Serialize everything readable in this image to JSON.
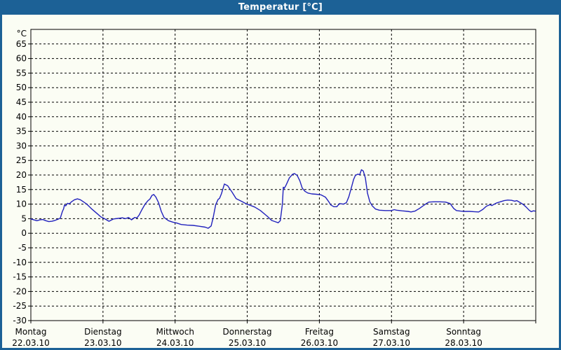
{
  "window": {
    "title": "Temperatur [°C]",
    "titlebar_color": "#1c6196",
    "frame_color": "#1c6196",
    "background_color": "#fbfdf4"
  },
  "chart_data": {
    "type": "line",
    "title": "Temperatur [°C]",
    "grid": "dashed",
    "line_color": "#2121bd",
    "axis_color": "#000000",
    "y_axis": {
      "unit_label": "°C",
      "min": -30,
      "max": 70,
      "tick_step": 5,
      "tick_labels": [
        65,
        60,
        55,
        50,
        45,
        40,
        35,
        30,
        25,
        20,
        15,
        10,
        5,
        0,
        -5,
        -10,
        -15,
        -20,
        -25,
        -30
      ]
    },
    "x_axis": {
      "hours_total": 168,
      "days": [
        {
          "name": "Montag",
          "date": "22.03.10"
        },
        {
          "name": "Dienstag",
          "date": "23.03.10"
        },
        {
          "name": "Mittwoch",
          "date": "24.03.10"
        },
        {
          "name": "Donnerstag",
          "date": "25.03.10"
        },
        {
          "name": "Freitag",
          "date": "26.03.10"
        },
        {
          "name": "Samstag",
          "date": "27.03.10"
        },
        {
          "name": "Sonntag",
          "date": "28.03.10"
        }
      ]
    },
    "series": [
      {
        "name": "Temperatur",
        "unit": "°C",
        "points_hour_temp": [
          [
            0,
            4.9
          ],
          [
            1,
            4.6
          ],
          [
            2,
            4.3
          ],
          [
            3,
            4.6
          ],
          [
            4,
            4.7
          ],
          [
            5,
            4.3
          ],
          [
            6,
            4.0
          ],
          [
            7,
            4.1
          ],
          [
            8,
            4.4
          ],
          [
            9,
            4.8
          ],
          [
            9.8,
            5.2
          ],
          [
            10.5,
            7.5
          ],
          [
            10.9,
            8.4
          ],
          [
            11.2,
            9.7
          ],
          [
            11.6,
            9.4
          ],
          [
            12.2,
            10.3
          ],
          [
            12.8,
            10.1
          ],
          [
            13.5,
            10.8
          ],
          [
            14.5,
            11.5
          ],
          [
            15.5,
            11.8
          ],
          [
            16.5,
            11.5
          ],
          [
            17.5,
            10.8
          ],
          [
            18.6,
            10.0
          ],
          [
            20.3,
            8.3
          ],
          [
            22.1,
            6.7
          ],
          [
            23.3,
            5.6
          ],
          [
            24.5,
            5.0
          ],
          [
            26,
            4.1
          ],
          [
            27.5,
            4.9
          ],
          [
            29,
            5.1
          ],
          [
            30.5,
            5.3
          ],
          [
            31.5,
            5.0
          ],
          [
            32.5,
            5.4
          ],
          [
            33.5,
            4.6
          ],
          [
            34.5,
            5.4
          ],
          [
            35.3,
            5.3
          ],
          [
            36,
            6.2
          ],
          [
            37,
            8.2
          ],
          [
            38,
            10.0
          ],
          [
            39,
            11.2
          ],
          [
            39.6,
            11.7
          ],
          [
            40.3,
            13.0
          ],
          [
            40.9,
            13.3
          ],
          [
            41.6,
            12.4
          ],
          [
            42.5,
            10.5
          ],
          [
            43.4,
            7.5
          ],
          [
            44.3,
            5.4
          ],
          [
            45.8,
            4.3
          ],
          [
            47.3,
            3.8
          ],
          [
            48.5,
            3.5
          ],
          [
            50,
            3.0
          ],
          [
            52,
            2.8
          ],
          [
            54,
            2.7
          ],
          [
            56,
            2.4
          ],
          [
            58,
            2.1
          ],
          [
            59,
            1.7
          ],
          [
            60,
            2.5
          ],
          [
            60.7,
            5.5
          ],
          [
            61.5,
            9.8
          ],
          [
            62.3,
            11.6
          ],
          [
            62.8,
            12.0
          ],
          [
            63.4,
            13.5
          ],
          [
            64.4,
            16.9
          ],
          [
            65.5,
            16.3
          ],
          [
            66.9,
            14.2
          ],
          [
            68.3,
            11.9
          ],
          [
            70,
            11.0
          ],
          [
            71.7,
            10.1
          ],
          [
            73,
            9.6
          ],
          [
            74.5,
            9.0
          ],
          [
            76.4,
            7.8
          ],
          [
            78.7,
            5.8
          ],
          [
            80.1,
            4.4
          ],
          [
            81.5,
            3.9
          ],
          [
            82.3,
            3.6
          ],
          [
            83,
            4.3
          ],
          [
            83.7,
            10.0
          ],
          [
            84,
            15.8
          ],
          [
            84.3,
            15.4
          ],
          [
            84.9,
            16.5
          ],
          [
            86,
            19.0
          ],
          [
            87,
            20.2
          ],
          [
            87.7,
            20.5
          ],
          [
            88.6,
            19.9
          ],
          [
            89.5,
            18.0
          ],
          [
            90.3,
            15.5
          ],
          [
            91.2,
            14.4
          ],
          [
            92.2,
            13.8
          ],
          [
            93.5,
            13.5
          ],
          [
            95,
            13.4
          ],
          [
            96.5,
            13.2
          ],
          [
            98,
            12.4
          ],
          [
            99,
            11.0
          ],
          [
            99.8,
            9.7
          ],
          [
            100.8,
            9.1
          ],
          [
            101.8,
            9.1
          ],
          [
            102.7,
            10.2
          ],
          [
            104,
            10.0
          ],
          [
            105,
            10.5
          ],
          [
            105.8,
            12.5
          ],
          [
            106.6,
            15.5
          ],
          [
            107.4,
            18.5
          ],
          [
            108,
            19.9
          ],
          [
            108.8,
            20.3
          ],
          [
            109.4,
            20.1
          ],
          [
            110,
            21.8
          ],
          [
            110.6,
            21.4
          ],
          [
            111.3,
            19.0
          ],
          [
            112,
            13.8
          ],
          [
            112.8,
            10.8
          ],
          [
            113.6,
            9.4
          ],
          [
            114.7,
            8.3
          ],
          [
            116,
            7.9
          ],
          [
            118,
            7.8
          ],
          [
            120,
            7.8
          ],
          [
            120.9,
            8.1
          ],
          [
            121.7,
            7.9
          ],
          [
            123.5,
            7.7
          ],
          [
            125.5,
            7.5
          ],
          [
            126.5,
            7.3
          ],
          [
            127.8,
            7.6
          ],
          [
            129.3,
            8.5
          ],
          [
            130.5,
            9.4
          ],
          [
            131.6,
            10.2
          ],
          [
            132.4,
            10.7
          ],
          [
            134,
            10.8
          ],
          [
            136,
            10.8
          ],
          [
            138,
            10.7
          ],
          [
            139.5,
            10.2
          ],
          [
            140.7,
            8.5
          ],
          [
            141.6,
            7.8
          ],
          [
            143,
            7.6
          ],
          [
            144.5,
            7.5
          ],
          [
            146,
            7.5
          ],
          [
            147.5,
            7.4
          ],
          [
            149,
            7.3
          ],
          [
            150.4,
            8.2
          ],
          [
            151.6,
            9.3
          ],
          [
            152.8,
            9.8
          ],
          [
            153.4,
            9.5
          ],
          [
            154.2,
            10.0
          ],
          [
            155,
            10.4
          ],
          [
            156.2,
            10.8
          ],
          [
            157.5,
            11.2
          ],
          [
            158.7,
            11.4
          ],
          [
            160,
            11.3
          ],
          [
            161,
            11.0
          ],
          [
            161.7,
            11.2
          ],
          [
            162.7,
            10.6
          ],
          [
            163.8,
            9.9
          ],
          [
            164.8,
            9.0
          ],
          [
            165.8,
            7.9
          ],
          [
            166.5,
            7.4
          ],
          [
            167.2,
            7.7
          ],
          [
            167.8,
            7.6
          ]
        ]
      }
    ]
  }
}
